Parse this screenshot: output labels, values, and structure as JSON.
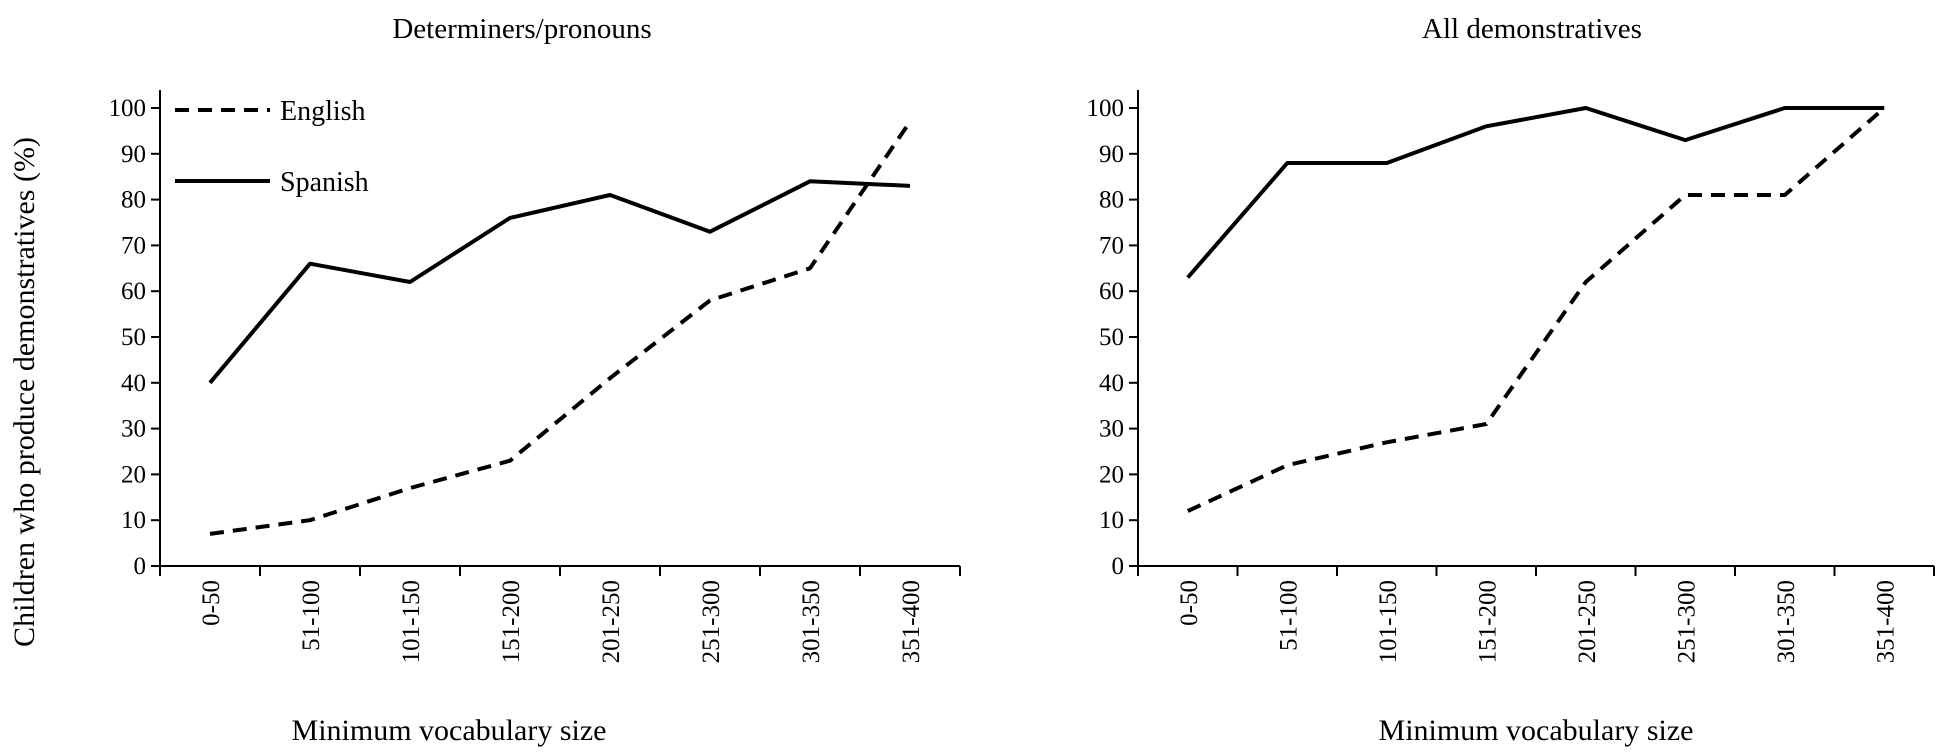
{
  "ylabel": "Children who produce demonstratives (%)",
  "line_color": "#000000",
  "chart_data": [
    {
      "type": "line",
      "title": "Determiners/pronouns",
      "xlabel": "Minimum vocabulary size",
      "ylabel": "Children who produce demonstratives (%)",
      "categories": [
        "0-50",
        "51-100",
        "101-150",
        "151-200",
        "201-250",
        "251-300",
        "301-350",
        "351-400"
      ],
      "ylim": [
        0,
        100
      ],
      "yticks": [
        0,
        10,
        20,
        30,
        40,
        50,
        60,
        70,
        80,
        90,
        100
      ],
      "grid": false,
      "legend": "top-left",
      "series": [
        {
          "name": "English",
          "style": "dashed",
          "values": [
            7,
            10,
            17,
            23,
            41,
            58,
            65,
            97
          ]
        },
        {
          "name": "Spanish",
          "style": "solid",
          "values": [
            40,
            66,
            62,
            76,
            81,
            73,
            84,
            83
          ]
        }
      ]
    },
    {
      "type": "line",
      "title": "All demonstratives",
      "xlabel": "Minimum vocabulary size",
      "categories": [
        "0-50",
        "51-100",
        "101-150",
        "151-200",
        "201-250",
        "251-300",
        "301-350",
        "351-400"
      ],
      "ylim": [
        0,
        100
      ],
      "yticks": [
        0,
        10,
        20,
        30,
        40,
        50,
        60,
        70,
        80,
        90,
        100
      ],
      "grid": false,
      "series": [
        {
          "name": "English",
          "style": "dashed",
          "values": [
            12,
            22,
            27,
            31,
            62,
            81,
            81,
            100
          ]
        },
        {
          "name": "Spanish",
          "style": "solid",
          "values": [
            63,
            88,
            88,
            96,
            100,
            93,
            100,
            100
          ]
        }
      ]
    }
  ]
}
